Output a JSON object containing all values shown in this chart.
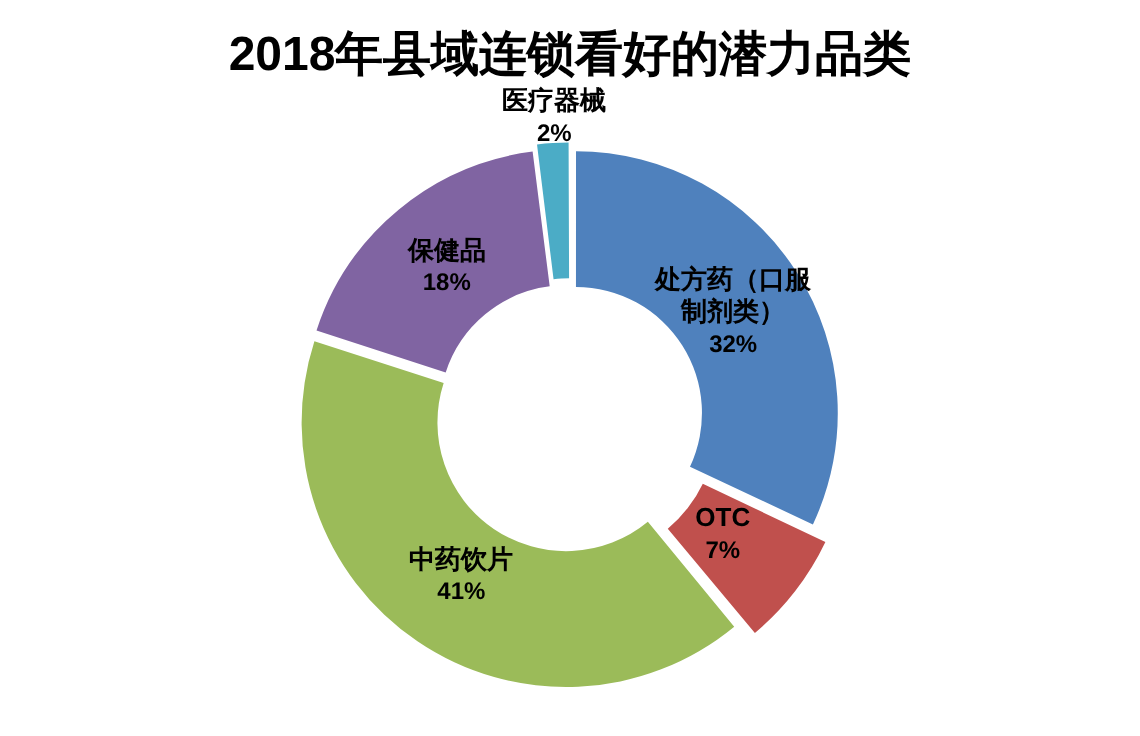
{
  "chart_data": {
    "type": "donut",
    "title": "2018年县域连锁看好的潜力品类",
    "categories": [
      "处方药（口服制剂类）",
      "OTC",
      "中药饮片",
      "保健品",
      "医疗器械"
    ],
    "values": [
      32,
      7,
      41,
      18,
      2
    ],
    "value_labels": [
      "32%",
      "7%",
      "41%",
      "18%",
      "2%"
    ],
    "colors": [
      "#4f81bd",
      "#c0504d",
      "#9bbb59",
      "#8064a2",
      "#4bacc6"
    ],
    "legend": false
  }
}
